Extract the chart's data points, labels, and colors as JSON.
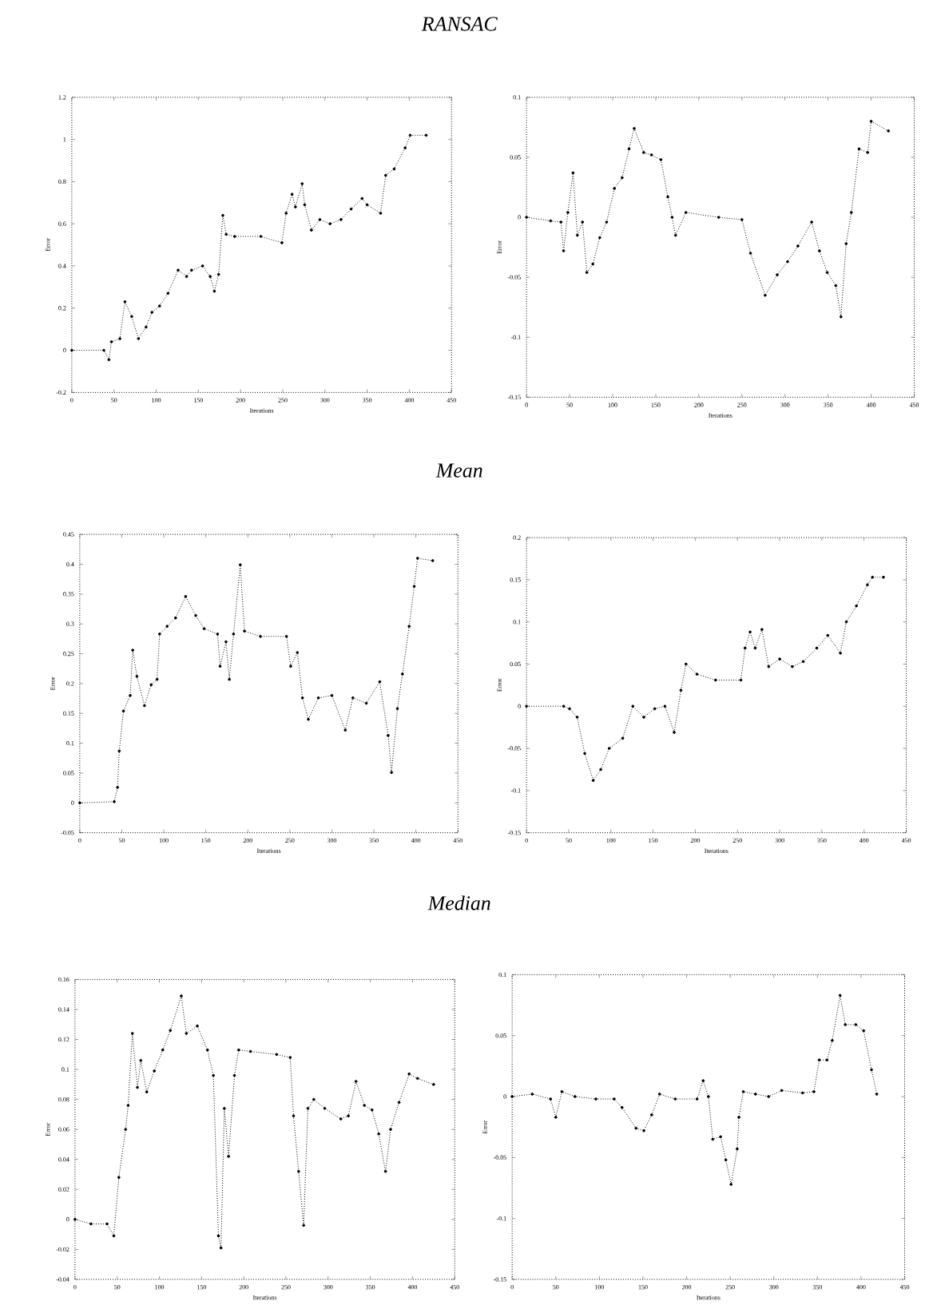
{
  "chart_data": [
    {
      "type": "line",
      "title": "RANSAC",
      "xlabel": "Iterations",
      "ylabel": "Error",
      "color": "#000000",
      "marker": "circle",
      "line_style": "dotted",
      "xlim": [
        0,
        450
      ],
      "xticks": [
        0,
        50,
        100,
        150,
        200,
        250,
        300,
        350,
        400,
        450
      ],
      "ylim": [
        -0.2,
        1.2
      ],
      "yticks": [
        -0.2,
        0,
        0.2,
        0.4,
        0.6,
        0.8,
        1,
        1.2
      ],
      "x": [
        0,
        38,
        44,
        47,
        57,
        63,
        71,
        79,
        88,
        95,
        104,
        114,
        126,
        136,
        142,
        155,
        164,
        169,
        174,
        179,
        183,
        193,
        224,
        249,
        254,
        261,
        265,
        273,
        276,
        284,
        294,
        306,
        319,
        331,
        344,
        350,
        366,
        372,
        382,
        395,
        401,
        420
      ],
      "values": [
        0,
        0,
        -0.045,
        0.04,
        0.055,
        0.23,
        0.16,
        0.055,
        0.11,
        0.18,
        0.21,
        0.27,
        0.38,
        0.35,
        0.38,
        0.4,
        0.35,
        0.28,
        0.36,
        0.64,
        0.55,
        0.54,
        0.54,
        0.51,
        0.65,
        0.74,
        0.68,
        0.79,
        0.69,
        0.57,
        0.62,
        0.6,
        0.62,
        0.67,
        0.72,
        0.69,
        0.65,
        0.83,
        0.86,
        0.96,
        1.02,
        1.02
      ]
    },
    {
      "type": "line",
      "xlabel": "Iterations",
      "ylabel": "Error",
      "color": "#000000",
      "marker": "circle",
      "line_style": "dotted",
      "xlim": [
        0,
        450
      ],
      "xticks": [
        0,
        50,
        100,
        150,
        200,
        250,
        300,
        350,
        400,
        450
      ],
      "ylim": [
        -0.15,
        0.1
      ],
      "yticks": [
        -0.15,
        -0.1,
        -0.05,
        0,
        0.05,
        0.1
      ],
      "x": [
        0,
        28,
        40,
        43,
        48,
        54,
        59,
        65,
        70,
        77,
        85,
        93,
        102,
        111,
        119,
        125,
        136,
        145,
        156,
        164,
        169,
        173,
        185,
        223,
        250,
        260,
        277,
        291,
        303,
        315,
        331,
        340,
        349,
        359,
        365,
        371,
        377,
        386,
        396,
        400,
        420
      ],
      "values": [
        0,
        -0.003,
        -0.004,
        -0.028,
        0.004,
        0.037,
        -0.015,
        -0.004,
        -0.046,
        -0.039,
        -0.017,
        -0.004,
        0.024,
        0.033,
        0.057,
        0.074,
        0.054,
        0.052,
        0.048,
        0.017,
        0,
        -0.015,
        0.004,
        0,
        -0.002,
        -0.03,
        -0.065,
        -0.048,
        -0.037,
        -0.024,
        -0.004,
        -0.028,
        -0.046,
        -0.057,
        -0.083,
        -0.022,
        0.004,
        0.057,
        0.054,
        0.08,
        0.072
      ]
    },
    {
      "type": "line",
      "title": "Mean",
      "xlabel": "Iterations",
      "ylabel": "Error",
      "color": "#000000",
      "marker": "circle",
      "line_style": "dotted",
      "xlim": [
        0,
        450
      ],
      "xticks": [
        0,
        50,
        100,
        150,
        200,
        250,
        300,
        350,
        400,
        450
      ],
      "ylim": [
        -0.05,
        0.45
      ],
      "yticks": [
        -0.05,
        0,
        0.05,
        0.1,
        0.15,
        0.2,
        0.25,
        0.3,
        0.35,
        0.4,
        0.45
      ],
      "x": [
        0,
        41,
        45,
        47,
        52,
        60,
        63,
        68,
        77,
        85,
        92,
        95,
        104,
        114,
        126,
        138,
        148,
        164,
        167,
        174,
        178,
        183,
        191,
        196,
        215,
        246,
        251,
        259,
        265,
        272,
        284,
        300,
        316,
        325,
        341,
        357,
        367,
        371,
        378,
        384,
        392,
        398,
        402,
        420
      ],
      "values": [
        0,
        0.002,
        0.026,
        0.087,
        0.154,
        0.18,
        0.256,
        0.212,
        0.163,
        0.198,
        0.207,
        0.283,
        0.296,
        0.31,
        0.346,
        0.314,
        0.292,
        0.283,
        0.229,
        0.27,
        0.207,
        0.283,
        0.399,
        0.288,
        0.279,
        0.279,
        0.229,
        0.252,
        0.176,
        0.14,
        0.176,
        0.18,
        0.122,
        0.176,
        0.167,
        0.203,
        0.113,
        0.051,
        0.158,
        0.216,
        0.296,
        0.363,
        0.41,
        0.406
      ]
    },
    {
      "type": "line",
      "xlabel": "Iterations",
      "ylabel": "Error",
      "color": "#000000",
      "marker": "circle",
      "line_style": "dotted",
      "xlim": [
        0,
        450
      ],
      "xticks": [
        0,
        50,
        100,
        150,
        200,
        250,
        300,
        350,
        400,
        450
      ],
      "ylim": [
        -0.15,
        0.2
      ],
      "yticks": [
        -0.15,
        -0.1,
        -0.05,
        0,
        0.05,
        0.1,
        0.15,
        0.2
      ],
      "x": [
        0,
        44,
        51,
        60,
        69,
        79,
        88,
        98,
        114,
        126,
        139,
        152,
        164,
        175,
        183,
        189,
        202,
        224,
        254,
        259,
        265,
        271,
        279,
        287,
        300,
        315,
        328,
        344,
        357,
        372,
        379,
        391,
        404,
        410,
        423
      ],
      "values": [
        0,
        0,
        -0.003,
        -0.013,
        -0.056,
        -0.088,
        -0.075,
        -0.05,
        -0.038,
        0,
        -0.013,
        -0.003,
        0,
        -0.031,
        0.019,
        0.05,
        0.038,
        0.031,
        0.031,
        0.069,
        0.088,
        0.069,
        0.091,
        0.047,
        0.056,
        0.047,
        0.053,
        0.069,
        0.084,
        0.063,
        0.1,
        0.119,
        0.144,
        0.153,
        0.153
      ]
    },
    {
      "type": "line",
      "title": "Median",
      "xlabel": "Iterations",
      "ylabel": "Error",
      "color": "#000000",
      "marker": "circle",
      "line_style": "dotted",
      "xlim": [
        0,
        450
      ],
      "xticks": [
        0,
        50,
        100,
        150,
        200,
        250,
        300,
        350,
        400,
        450
      ],
      "ylim": [
        -0.04,
        0.16
      ],
      "yticks": [
        -0.04,
        -0.02,
        0,
        0.02,
        0.04,
        0.06,
        0.08,
        0.1,
        0.12,
        0.14,
        0.16
      ],
      "x": [
        0,
        19,
        38,
        46,
        52,
        60,
        63,
        68,
        74,
        78,
        85,
        94,
        104,
        113,
        126,
        132,
        145,
        157,
        164,
        170,
        173,
        177,
        182,
        189,
        194,
        208,
        239,
        255,
        259,
        265,
        271,
        276,
        283,
        296,
        315,
        324,
        333,
        343,
        352,
        360,
        368,
        374,
        384,
        396,
        406,
        425
      ],
      "values": [
        0,
        -0.003,
        -0.003,
        -0.011,
        0.028,
        0.06,
        0.076,
        0.124,
        0.088,
        0.106,
        0.085,
        0.099,
        0.113,
        0.126,
        0.149,
        0.124,
        0.129,
        0.113,
        0.096,
        -0.011,
        -0.019,
        0.074,
        0.042,
        0.096,
        0.113,
        0.112,
        0.11,
        0.108,
        0.069,
        0.032,
        -0.004,
        0.074,
        0.08,
        0.074,
        0.067,
        0.069,
        0.092,
        0.076,
        0.073,
        0.057,
        0.032,
        0.06,
        0.078,
        0.097,
        0.094,
        0.09
      ]
    },
    {
      "type": "line",
      "xlabel": "Iterations",
      "ylabel": "Error",
      "color": "#000000",
      "marker": "circle",
      "line_style": "dotted",
      "xlim": [
        0,
        450
      ],
      "xticks": [
        0,
        50,
        100,
        150,
        200,
        250,
        300,
        350,
        400,
        450
      ],
      "ylim": [
        -0.15,
        0.1
      ],
      "yticks": [
        -0.15,
        -0.1,
        -0.05,
        0,
        0.05,
        0.1
      ],
      "x": [
        0,
        23,
        44,
        50,
        57,
        72,
        96,
        117,
        126,
        142,
        151,
        160,
        169,
        187,
        212,
        219,
        225,
        230,
        239,
        245,
        251,
        258,
        260,
        265,
        279,
        294,
        309,
        333,
        346,
        352,
        361,
        367,
        376,
        382,
        394,
        403,
        412,
        418
      ],
      "values": [
        0,
        0.002,
        -0.002,
        -0.017,
        0.004,
        0,
        -0.002,
        -0.002,
        -0.009,
        -0.026,
        -0.028,
        -0.015,
        0.002,
        -0.002,
        -0.002,
        0.013,
        0,
        -0.035,
        -0.033,
        -0.052,
        -0.072,
        -0.043,
        -0.017,
        0.004,
        0.002,
        0,
        0.005,
        0.003,
        0.004,
        0.03,
        0.03,
        0.046,
        0.083,
        0.059,
        0.059,
        0.054,
        0.022,
        0.002
      ]
    }
  ]
}
